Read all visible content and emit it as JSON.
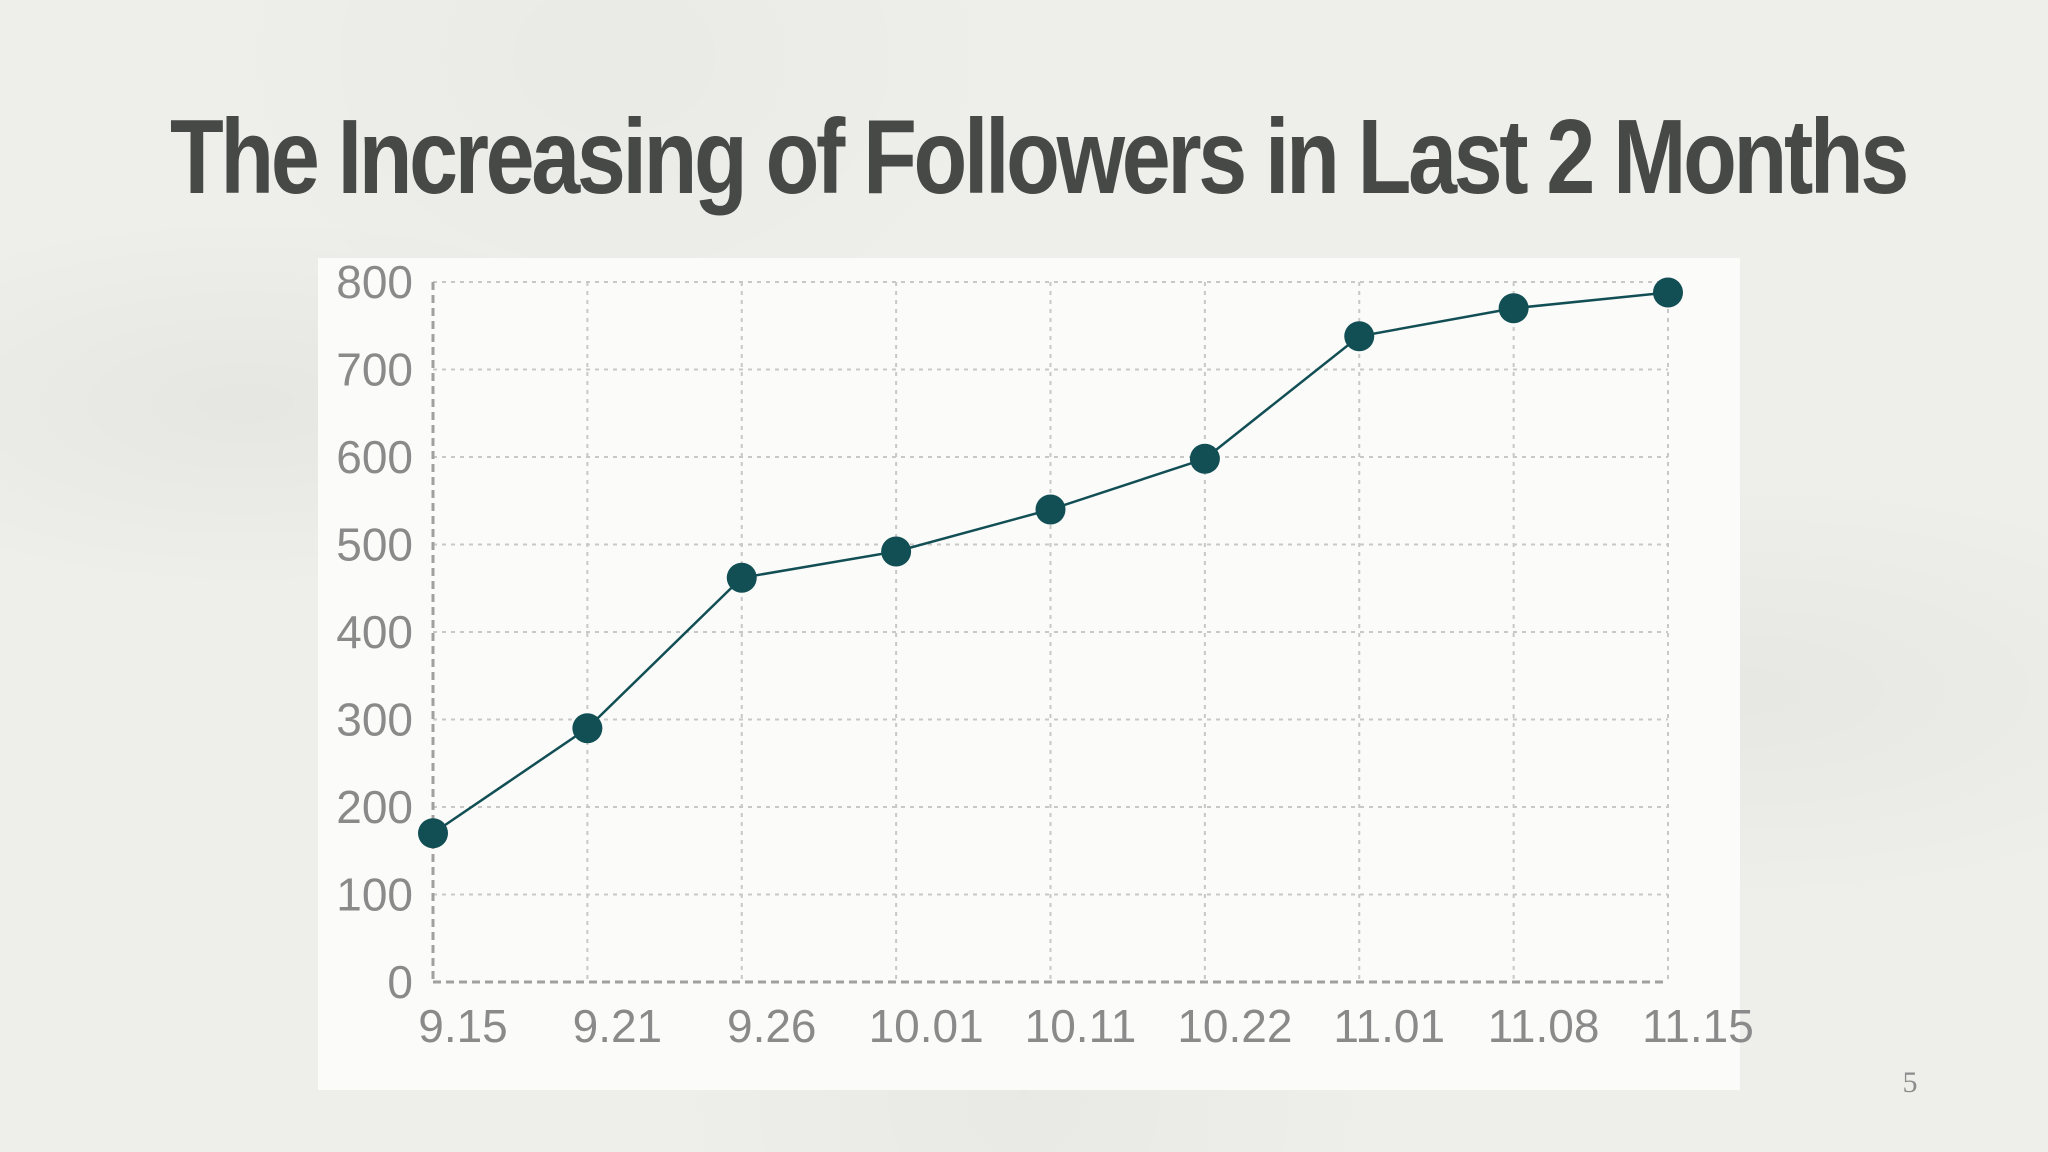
{
  "slide": {
    "title": "The Increasing of Followers in Last 2 Months",
    "page_number": "5"
  },
  "colors": {
    "background": "#eeeeea",
    "title": "#474947",
    "series": "#124f55",
    "grid": "#c8c8c8",
    "axis": "#a0a0a0",
    "tick_text": "#8a8a8a"
  },
  "chart_data": {
    "type": "line",
    "title": "The Increasing of Followers in Last 2 Months",
    "xlabel": "",
    "ylabel": "",
    "categories": [
      "9.15",
      "9.21",
      "9.26",
      "10.01",
      "10.11",
      "10.22",
      "11.01",
      "11.08",
      "11.15"
    ],
    "series": [
      {
        "name": "Followers",
        "values": [
          170,
          290,
          462,
          492,
          540,
          598,
          738,
          770,
          788
        ]
      }
    ],
    "ylim": [
      0,
      800
    ],
    "yticks": [
      0,
      100,
      200,
      300,
      400,
      500,
      600,
      700,
      800
    ],
    "grid": true,
    "grid_style": "dashed",
    "legend": "none"
  }
}
